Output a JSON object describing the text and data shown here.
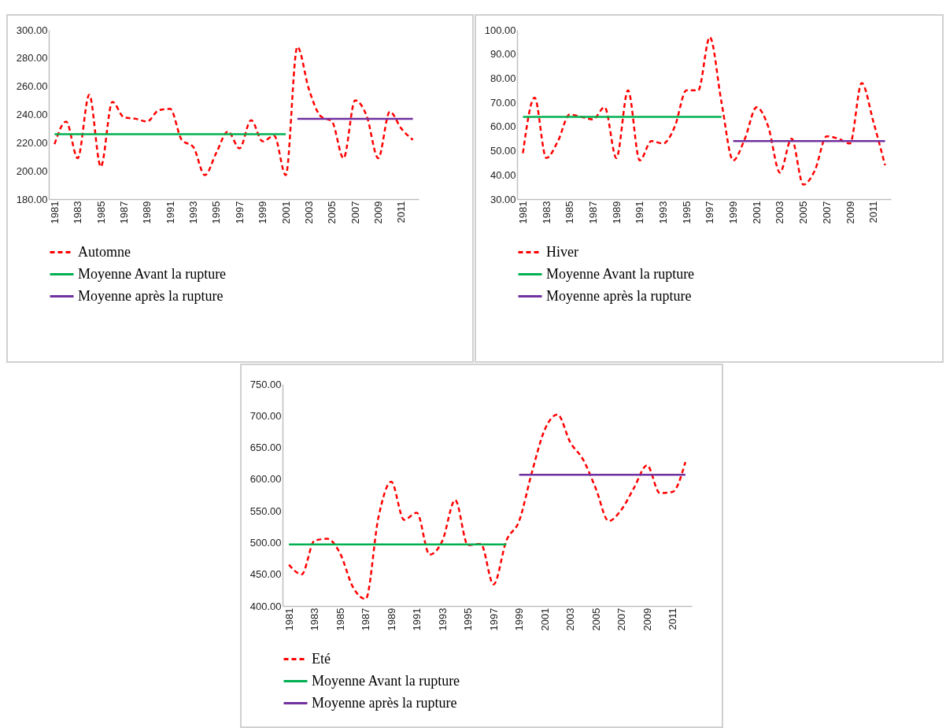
{
  "chart_data": [
    {
      "type": "line",
      "categories": [
        "1981",
        null,
        "1983",
        null,
        "1985",
        null,
        "1987",
        null,
        "1989",
        null,
        "1991",
        null,
        "1993",
        null,
        "1995",
        null,
        "1997",
        null,
        "1999",
        null,
        "2001",
        null,
        "2003",
        null,
        "2005",
        null,
        "2007",
        null,
        "2009",
        null,
        "2011",
        null
      ],
      "series": [
        {
          "name": "Automne",
          "color": "#ff0000",
          "line_style": "dashed",
          "values": [
            219,
            235,
            209,
            254,
            203,
            249,
            238,
            237,
            235,
            243,
            244,
            222,
            217,
            197,
            213,
            228,
            216,
            236,
            221,
            225,
            197,
            288,
            258,
            239,
            235,
            209,
            250,
            239,
            209,
            242,
            230,
            222
          ]
        },
        {
          "name": "Moyenne Avant la rupture",
          "color": "#00b050",
          "line_style": "solid",
          "values": [
            226,
            226,
            226,
            226,
            226,
            226,
            226,
            226,
            226,
            226,
            226,
            226,
            226,
            226,
            226,
            226,
            226,
            226,
            226,
            226,
            226,
            null,
            null,
            null,
            null,
            null,
            null,
            null,
            null,
            null,
            null,
            null
          ]
        },
        {
          "name": "Moyenne après la rupture",
          "color": "#7030a0",
          "line_style": "solid",
          "values": [
            null,
            null,
            null,
            null,
            null,
            null,
            null,
            null,
            null,
            null,
            null,
            null,
            null,
            null,
            null,
            null,
            null,
            null,
            null,
            null,
            null,
            237,
            237,
            237,
            237,
            237,
            237,
            237,
            237,
            237,
            237,
            237
          ]
        }
      ],
      "ylim": [
        180,
        300
      ],
      "yticks": [
        {
          "value": 180,
          "label": "180.00"
        },
        {
          "value": 200,
          "label": "200.00"
        },
        {
          "value": 220,
          "label": "220.00"
        },
        {
          "value": 240,
          "label": "240.00"
        },
        {
          "value": 260,
          "label": "260.00"
        },
        {
          "value": 280,
          "label": "280.00"
        },
        {
          "value": 300,
          "label": "300.00"
        }
      ],
      "legend": "bottom",
      "grid": false
    },
    {
      "type": "line",
      "categories": [
        "1981",
        null,
        "1983",
        null,
        "1985",
        null,
        "1987",
        null,
        "1989",
        null,
        "1991",
        null,
        "1993",
        null,
        "1995",
        null,
        "1997",
        null,
        "1999",
        null,
        "2001",
        null,
        "2003",
        null,
        "2005",
        null,
        "2007",
        null,
        "2009",
        null,
        "2011",
        null
      ],
      "series": [
        {
          "name": "Hiver",
          "color": "#ff0000",
          "line_style": "dashed",
          "values": [
            49,
            72,
            47,
            54,
            65,
            64,
            63,
            68,
            47,
            75,
            46,
            54,
            53,
            60,
            75,
            75,
            97,
            70,
            46,
            55,
            68,
            60,
            41,
            55,
            36,
            42,
            56,
            55,
            53,
            78,
            62,
            44
          ]
        },
        {
          "name": "Moyenne Avant la rupture",
          "color": "#00b050",
          "line_style": "solid",
          "values": [
            64,
            64,
            64,
            64,
            64,
            64,
            64,
            64,
            64,
            64,
            64,
            64,
            64,
            64,
            64,
            64,
            64,
            64,
            null,
            null,
            null,
            null,
            null,
            null,
            null,
            null,
            null,
            null,
            null,
            null,
            null,
            null
          ]
        },
        {
          "name": "Moyenne après la rupture",
          "color": "#7030a0",
          "line_style": "solid",
          "values": [
            null,
            null,
            null,
            null,
            null,
            null,
            null,
            null,
            null,
            null,
            null,
            null,
            null,
            null,
            null,
            null,
            null,
            null,
            54,
            54,
            54,
            54,
            54,
            54,
            54,
            54,
            54,
            54,
            54,
            54,
            54,
            54
          ]
        }
      ],
      "ylim": [
        30,
        100
      ],
      "yticks": [
        {
          "value": 30,
          "label": "30.00"
        },
        {
          "value": 40,
          "label": "40.00"
        },
        {
          "value": 50,
          "label": "50.00"
        },
        {
          "value": 60,
          "label": "60.00"
        },
        {
          "value": 70,
          "label": "70.00"
        },
        {
          "value": 80,
          "label": "80.00"
        },
        {
          "value": 90,
          "label": "90.00"
        },
        {
          "value": 100,
          "label": "100.00"
        }
      ],
      "legend": "bottom",
      "grid": false
    },
    {
      "type": "line",
      "categories": [
        "1981",
        null,
        "1983",
        null,
        "1985",
        null,
        "1987",
        null,
        "1989",
        null,
        "1991",
        null,
        "1993",
        null,
        "1995",
        null,
        "1997",
        null,
        "1999",
        null,
        "2001",
        null,
        "2003",
        null,
        "2005",
        null,
        "2007",
        null,
        "2009",
        null,
        "2011",
        null
      ],
      "series": [
        {
          "name": "Eté",
          "color": "#ff0000",
          "line_style": "dashed",
          "values": [
            465,
            450,
            503,
            506,
            483,
            430,
            411,
            540,
            596,
            536,
            547,
            481,
            503,
            567,
            496,
            498,
            434,
            503,
            534,
            611,
            678,
            702,
            658,
            631,
            585,
            534,
            552,
            587,
            622,
            578,
            580,
            627
          ]
        },
        {
          "name": "Moyenne Avant la rupture",
          "color": "#00b050",
          "line_style": "solid",
          "values": [
            497,
            497,
            497,
            497,
            497,
            497,
            497,
            497,
            497,
            497,
            497,
            497,
            497,
            497,
            497,
            497,
            497,
            497,
            null,
            null,
            null,
            null,
            null,
            null,
            null,
            null,
            null,
            null,
            null,
            null,
            null,
            null
          ]
        },
        {
          "name": "Moyenne après la rupture",
          "color": "#7030a0",
          "line_style": "solid",
          "values": [
            null,
            null,
            null,
            null,
            null,
            null,
            null,
            null,
            null,
            null,
            null,
            null,
            null,
            null,
            null,
            null,
            null,
            null,
            607,
            607,
            607,
            607,
            607,
            607,
            607,
            607,
            607,
            607,
            607,
            607,
            607,
            607
          ]
        }
      ],
      "ylim": [
        400,
        750
      ],
      "yticks": [
        {
          "value": 400,
          "label": "400.00"
        },
        {
          "value": 450,
          "label": "450.00"
        },
        {
          "value": 500,
          "label": "500.00"
        },
        {
          "value": 550,
          "label": "550.00"
        },
        {
          "value": 600,
          "label": "600.00"
        },
        {
          "value": 650,
          "label": "650.00"
        },
        {
          "value": 700,
          "label": "700.00"
        },
        {
          "value": 750,
          "label": "750.00"
        }
      ],
      "legend": "bottom",
      "grid": false
    }
  ]
}
